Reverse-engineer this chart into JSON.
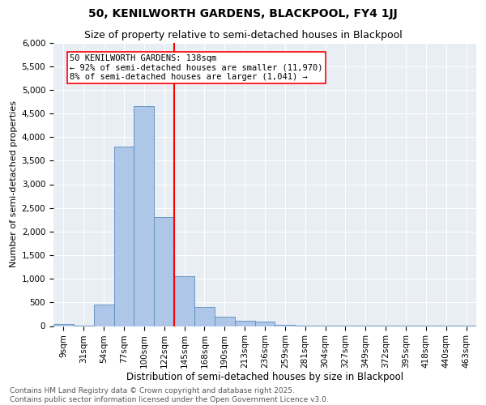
{
  "title1": "50, KENILWORTH GARDENS, BLACKPOOL, FY4 1JJ",
  "title2": "Size of property relative to semi-detached houses in Blackpool",
  "xlabel": "Distribution of semi-detached houses by size in Blackpool",
  "ylabel": "Number of semi-detached properties",
  "categories": [
    "9sqm",
    "31sqm",
    "54sqm",
    "77sqm",
    "100sqm",
    "122sqm",
    "145sqm",
    "168sqm",
    "190sqm",
    "213sqm",
    "236sqm",
    "259sqm",
    "281sqm",
    "304sqm",
    "327sqm",
    "349sqm",
    "372sqm",
    "395sqm",
    "418sqm",
    "440sqm",
    "463sqm"
  ],
  "values": [
    50,
    5,
    450,
    3800,
    4650,
    2300,
    1050,
    400,
    200,
    110,
    100,
    30,
    10,
    5,
    3,
    2,
    2,
    1,
    1,
    1,
    1
  ],
  "bar_color": "#aec6e8",
  "bar_edge_color": "#5b8db8",
  "vline_color": "red",
  "annotation_line1": "50 KENILWORTH GARDENS: 138sqm",
  "annotation_line2": "← 92% of semi-detached houses are smaller (11,970)",
  "annotation_line3": "8% of semi-detached houses are larger (1,041) →",
  "ylim": [
    0,
    6000
  ],
  "yticks": [
    0,
    500,
    1000,
    1500,
    2000,
    2500,
    3000,
    3500,
    4000,
    4500,
    5000,
    5500,
    6000
  ],
  "bg_color": "#e8eef4",
  "footnote": "Contains HM Land Registry data © Crown copyright and database right 2025.\nContains public sector information licensed under the Open Government Licence v3.0.",
  "title1_fontsize": 10,
  "title2_fontsize": 9,
  "xlabel_fontsize": 8.5,
  "ylabel_fontsize": 8,
  "annotation_fontsize": 7.5,
  "footnote_fontsize": 6.5,
  "tick_fontsize": 7.5
}
